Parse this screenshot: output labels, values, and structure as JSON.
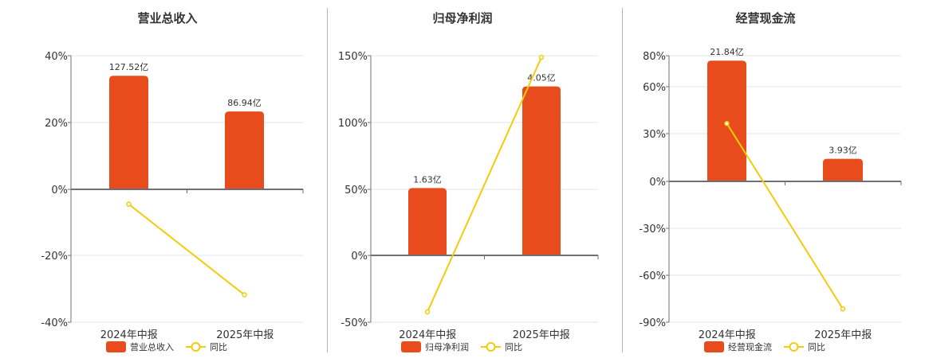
{
  "colors": {
    "bar": "#E84C1C",
    "line": "#F2CC0C",
    "axis": "#6E7079",
    "grid": "#E0E6F1",
    "divider": "#B5B5B5"
  },
  "panels": [
    {
      "title": "营业总收入",
      "legend_bar": "营业总收入",
      "legend_line": "同比"
    },
    {
      "title": "归母净利润",
      "legend_bar": "归母净利润",
      "legend_line": "同比"
    },
    {
      "title": "经营现金流",
      "legend_bar": "经营现金流",
      "legend_line": "同比"
    }
  ],
  "chart_data": [
    {
      "type": "bar",
      "title": "营业总收入",
      "categories": [
        "2024年中报",
        "2025年中报"
      ],
      "series": [
        {
          "name": "营业总收入",
          "type": "bar",
          "values": [
            127.52,
            86.94
          ],
          "labels": [
            "127.52亿",
            "86.94亿"
          ],
          "bar_heights_pct": [
            34,
            23.3
          ]
        },
        {
          "name": "同比",
          "type": "line",
          "values": [
            -4.5,
            -31.8
          ]
        }
      ],
      "yticks": [
        "40%",
        "20%",
        "0%",
        "-20%",
        "-40%"
      ],
      "ylim": [
        -40,
        40
      ],
      "xlabel": "",
      "ylabel": "",
      "grid": true,
      "legend_position": "bottom"
    },
    {
      "type": "bar",
      "title": "归母净利润",
      "categories": [
        "2024年中报",
        "2025年中报"
      ],
      "series": [
        {
          "name": "归母净利润",
          "type": "bar",
          "values": [
            1.63,
            4.05
          ],
          "labels": [
            "1.63亿",
            "4.05亿"
          ],
          "bar_heights_pct": [
            51,
            127
          ]
        },
        {
          "name": "同比",
          "type": "line",
          "values": [
            -42.3,
            148.8
          ]
        }
      ],
      "yticks": [
        "150%",
        "100%",
        "50%",
        "0%",
        "-50%"
      ],
      "ylim": [
        -50,
        150
      ],
      "xlabel": "",
      "ylabel": "",
      "grid": true,
      "legend_position": "bottom"
    },
    {
      "type": "bar",
      "title": "经营现金流",
      "categories": [
        "2024年中报",
        "2025年中报"
      ],
      "series": [
        {
          "name": "经营现金流",
          "type": "bar",
          "values": [
            21.84,
            3.93
          ],
          "labels": [
            "21.84亿",
            "3.93亿"
          ],
          "bar_heights_pct": [
            76.8,
            14.2
          ]
        },
        {
          "name": "同比",
          "type": "line",
          "values": [
            36.5,
            -81.5
          ]
        }
      ],
      "yticks": [
        "80%",
        "60%",
        "30%",
        "0%",
        "-30%",
        "-60%",
        "-90%"
      ],
      "ylim": [
        -90,
        80
      ],
      "xlabel": "",
      "ylabel": "",
      "grid": true,
      "legend_position": "bottom"
    }
  ]
}
